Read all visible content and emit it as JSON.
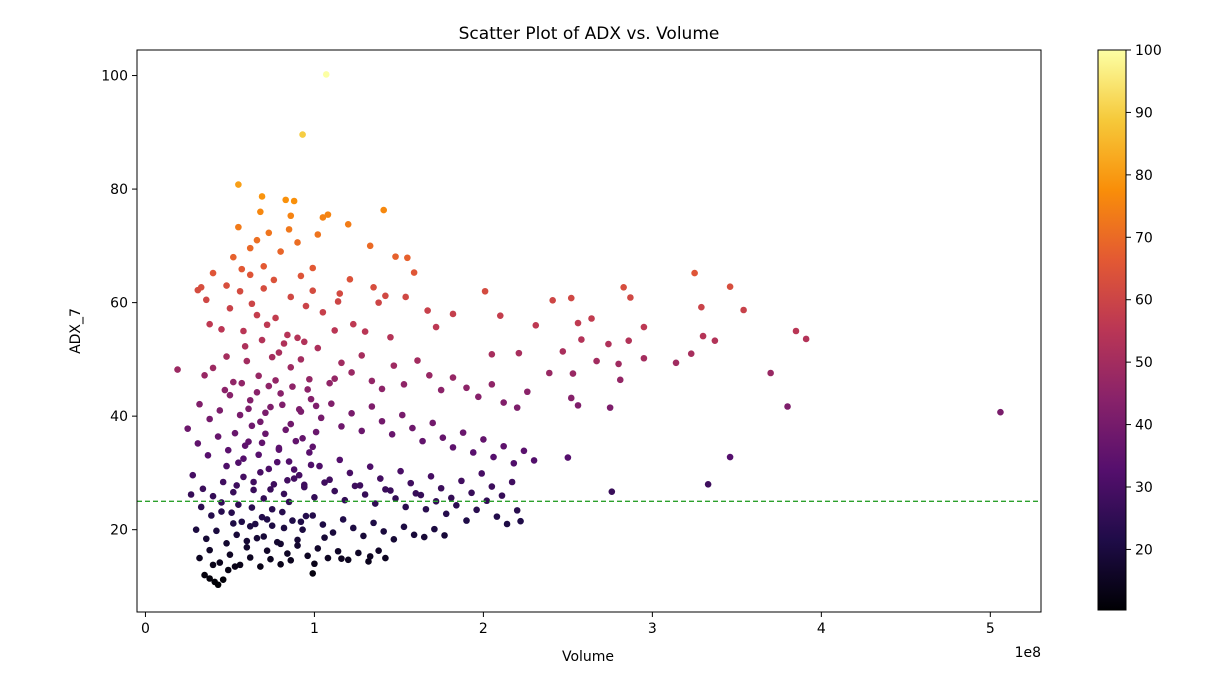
{
  "chart_data": {
    "type": "scatter",
    "title": "Scatter Plot of ADX vs. Volume",
    "xlabel": "Volume",
    "ylabel": "ADX_7",
    "x_offset_label": "1e8",
    "x_unit_multiplier": 100000000,
    "xlim": [
      -0.05,
      5.3
    ],
    "ylim": [
      5.5,
      104.5
    ],
    "x_ticks": [
      0,
      1,
      2,
      3,
      4,
      5
    ],
    "x_tick_labels": [
      "0",
      "1",
      "2",
      "3",
      "4",
      "5"
    ],
    "y_ticks": [
      20,
      40,
      60,
      80,
      100
    ],
    "y_tick_labels": [
      "20",
      "40",
      "60",
      "80",
      "100"
    ],
    "colormap": "inferno",
    "color_value": "ADX_7",
    "colorbar_range": [
      10.3,
      100
    ],
    "colorbar_ticks": [
      20,
      30,
      40,
      50,
      60,
      70,
      80,
      90,
      100
    ],
    "colorbar_tick_labels": [
      "20",
      "30",
      "40",
      "50",
      "60",
      "70",
      "80",
      "90",
      "100"
    ],
    "reference_line": {
      "y": 25,
      "style": "dashed",
      "color": "#2ca02c"
    },
    "grid": false,
    "legend": "none",
    "points": [
      [
        1.07,
        100.2
      ],
      [
        0.93,
        89.6
      ],
      [
        0.55,
        80.8
      ],
      [
        0.69,
        78.7
      ],
      [
        0.83,
        78.1
      ],
      [
        0.88,
        77.9
      ],
      [
        1.05,
        75.0
      ],
      [
        1.08,
        75.5
      ],
      [
        1.41,
        76.3
      ],
      [
        0.86,
        75.3
      ],
      [
        0.68,
        76.0
      ],
      [
        0.55,
        73.3
      ],
      [
        0.85,
        72.9
      ],
      [
        0.66,
        71.0
      ],
      [
        0.73,
        72.3
      ],
      [
        0.9,
        70.6
      ],
      [
        1.02,
        72.0
      ],
      [
        1.2,
        73.8
      ],
      [
        1.33,
        70.0
      ],
      [
        0.62,
        69.6
      ],
      [
        0.8,
        69.0
      ],
      [
        0.52,
        68.0
      ],
      [
        1.48,
        68.1
      ],
      [
        1.55,
        67.9
      ],
      [
        0.57,
        65.9
      ],
      [
        0.7,
        66.4
      ],
      [
        0.62,
        64.9
      ],
      [
        0.76,
        64.0
      ],
      [
        0.92,
        64.7
      ],
      [
        0.99,
        66.1
      ],
      [
        1.21,
        64.1
      ],
      [
        0.4,
        65.2
      ],
      [
        1.59,
        65.3
      ],
      [
        3.25,
        65.2
      ],
      [
        0.31,
        62.2
      ],
      [
        0.33,
        62.7
      ],
      [
        0.48,
        63.0
      ],
      [
        0.56,
        62.0
      ],
      [
        0.7,
        62.5
      ],
      [
        0.86,
        61.0
      ],
      [
        0.99,
        62.1
      ],
      [
        1.15,
        61.6
      ],
      [
        1.14,
        60.2
      ],
      [
        1.38,
        60.0
      ],
      [
        1.35,
        62.7
      ],
      [
        1.42,
        61.2
      ],
      [
        1.54,
        61.0
      ],
      [
        2.01,
        62.0
      ],
      [
        2.41,
        60.4
      ],
      [
        2.52,
        60.8
      ],
      [
        2.83,
        62.7
      ],
      [
        3.46,
        62.8
      ],
      [
        2.87,
        60.9
      ],
      [
        3.29,
        59.2
      ],
      [
        3.54,
        58.7
      ],
      [
        0.36,
        60.5
      ],
      [
        0.5,
        59.0
      ],
      [
        0.63,
        59.8
      ],
      [
        0.77,
        57.3
      ],
      [
        0.95,
        59.4
      ],
      [
        1.05,
        58.3
      ],
      [
        1.23,
        56.2
      ],
      [
        1.67,
        58.6
      ],
      [
        1.82,
        58.0
      ],
      [
        2.1,
        57.7
      ],
      [
        2.31,
        56.0
      ],
      [
        0.38,
        56.2
      ],
      [
        0.45,
        55.3
      ],
      [
        0.58,
        55.0
      ],
      [
        0.66,
        57.8
      ],
      [
        0.72,
        56.1
      ],
      [
        0.84,
        54.3
      ],
      [
        0.9,
        53.8
      ],
      [
        1.12,
        55.1
      ],
      [
        1.3,
        54.9
      ],
      [
        1.45,
        53.9
      ],
      [
        1.72,
        55.7
      ],
      [
        2.56,
        56.4
      ],
      [
        2.64,
        57.2
      ],
      [
        2.95,
        55.7
      ],
      [
        3.3,
        54.1
      ],
      [
        3.85,
        55.0
      ],
      [
        3.37,
        53.3
      ],
      [
        3.91,
        53.6
      ],
      [
        2.58,
        53.5
      ],
      [
        2.86,
        53.3
      ],
      [
        2.74,
        52.7
      ],
      [
        2.95,
        50.2
      ],
      [
        3.23,
        51.0
      ],
      [
        2.05,
        50.9
      ],
      [
        2.21,
        51.1
      ],
      [
        2.47,
        51.4
      ],
      [
        2.67,
        49.7
      ],
      [
        3.14,
        49.4
      ],
      [
        2.8,
        49.2
      ],
      [
        3.7,
        47.6
      ],
      [
        2.53,
        47.5
      ],
      [
        2.39,
        47.6
      ],
      [
        2.81,
        46.4
      ],
      [
        0.19,
        48.2
      ],
      [
        0.35,
        47.2
      ],
      [
        0.4,
        48.5
      ],
      [
        0.48,
        50.5
      ],
      [
        0.52,
        46.0
      ],
      [
        0.6,
        49.7
      ],
      [
        0.67,
        47.1
      ],
      [
        0.73,
        45.3
      ],
      [
        0.79,
        51.2
      ],
      [
        0.86,
        48.6
      ],
      [
        0.92,
        50.0
      ],
      [
        0.97,
        46.5
      ],
      [
        1.02,
        52.0
      ],
      [
        1.09,
        45.8
      ],
      [
        1.16,
        49.4
      ],
      [
        1.22,
        47.7
      ],
      [
        1.28,
        50.7
      ],
      [
        1.34,
        46.2
      ],
      [
        1.4,
        44.8
      ],
      [
        1.47,
        48.9
      ],
      [
        1.53,
        45.6
      ],
      [
        1.61,
        49.8
      ],
      [
        1.68,
        47.2
      ],
      [
        1.75,
        44.6
      ],
      [
        1.82,
        46.8
      ],
      [
        1.9,
        45.0
      ],
      [
        1.97,
        43.4
      ],
      [
        2.05,
        45.6
      ],
      [
        2.12,
        42.4
      ],
      [
        2.2,
        41.5
      ],
      [
        2.26,
        44.3
      ],
      [
        2.52,
        43.2
      ],
      [
        2.56,
        41.9
      ],
      [
        2.75,
        41.5
      ],
      [
        3.8,
        41.7
      ],
      [
        5.06,
        40.7
      ],
      [
        0.32,
        42.1
      ],
      [
        0.38,
        39.5
      ],
      [
        0.44,
        41.0
      ],
      [
        0.5,
        43.7
      ],
      [
        0.56,
        40.2
      ],
      [
        0.62,
        42.8
      ],
      [
        0.68,
        39.0
      ],
      [
        0.74,
        41.6
      ],
      [
        0.8,
        44.0
      ],
      [
        0.86,
        38.6
      ],
      [
        0.92,
        40.8
      ],
      [
        0.98,
        43.0
      ],
      [
        1.04,
        39.7
      ],
      [
        1.1,
        42.2
      ],
      [
        1.16,
        38.2
      ],
      [
        1.22,
        40.5
      ],
      [
        1.28,
        37.4
      ],
      [
        1.34,
        41.7
      ],
      [
        1.4,
        39.1
      ],
      [
        1.46,
        36.8
      ],
      [
        1.52,
        40.2
      ],
      [
        1.58,
        37.9
      ],
      [
        1.64,
        35.6
      ],
      [
        1.7,
        38.8
      ],
      [
        1.76,
        36.2
      ],
      [
        1.82,
        34.5
      ],
      [
        1.88,
        37.1
      ],
      [
        1.94,
        33.6
      ],
      [
        2.0,
        35.9
      ],
      [
        2.06,
        32.8
      ],
      [
        2.12,
        34.7
      ],
      [
        2.18,
        31.7
      ],
      [
        2.24,
        33.9
      ],
      [
        2.3,
        32.2
      ],
      [
        2.5,
        32.7
      ],
      [
        3.46,
        32.8
      ],
      [
        0.25,
        37.8
      ],
      [
        0.31,
        35.2
      ],
      [
        0.37,
        33.1
      ],
      [
        0.43,
        36.4
      ],
      [
        0.49,
        34.0
      ],
      [
        0.55,
        31.8
      ],
      [
        0.61,
        35.5
      ],
      [
        0.67,
        33.2
      ],
      [
        0.73,
        30.7
      ],
      [
        0.79,
        34.4
      ],
      [
        0.85,
        32.0
      ],
      [
        0.91,
        29.6
      ],
      [
        0.97,
        33.6
      ],
      [
        1.03,
        31.2
      ],
      [
        1.09,
        28.8
      ],
      [
        1.15,
        32.3
      ],
      [
        1.21,
        30.0
      ],
      [
        1.27,
        27.8
      ],
      [
        1.33,
        31.1
      ],
      [
        1.39,
        29.0
      ],
      [
        1.45,
        26.9
      ],
      [
        1.51,
        30.3
      ],
      [
        1.57,
        28.2
      ],
      [
        1.63,
        26.1
      ],
      [
        1.69,
        29.4
      ],
      [
        1.75,
        27.3
      ],
      [
        1.81,
        25.6
      ],
      [
        1.87,
        28.6
      ],
      [
        1.93,
        26.5
      ],
      [
        1.99,
        29.9
      ],
      [
        2.05,
        27.6
      ],
      [
        2.11,
        26.0
      ],
      [
        2.17,
        28.4
      ],
      [
        2.76,
        26.7
      ],
      [
        3.33,
        28.0
      ],
      [
        0.28,
        29.6
      ],
      [
        0.34,
        27.2
      ],
      [
        0.4,
        25.9
      ],
      [
        0.46,
        28.4
      ],
      [
        0.52,
        26.6
      ],
      [
        0.58,
        29.3
      ],
      [
        0.64,
        27.0
      ],
      [
        0.7,
        25.5
      ],
      [
        0.76,
        28.0
      ],
      [
        0.82,
        26.3
      ],
      [
        0.88,
        29.0
      ],
      [
        0.94,
        27.5
      ],
      [
        1.0,
        25.7
      ],
      [
        1.06,
        28.3
      ],
      [
        1.12,
        26.8
      ],
      [
        1.18,
        25.2
      ],
      [
        1.24,
        27.7
      ],
      [
        1.3,
        26.2
      ],
      [
        1.36,
        24.6
      ],
      [
        1.42,
        27.1
      ],
      [
        1.48,
        25.5
      ],
      [
        1.54,
        24.0
      ],
      [
        1.6,
        26.4
      ],
      [
        1.66,
        23.6
      ],
      [
        1.72,
        25.0
      ],
      [
        1.78,
        22.8
      ],
      [
        1.84,
        24.3
      ],
      [
        1.9,
        21.6
      ],
      [
        1.96,
        23.5
      ],
      [
        2.02,
        25.1
      ],
      [
        2.08,
        22.3
      ],
      [
        2.14,
        21.0
      ],
      [
        2.2,
        23.4
      ],
      [
        2.22,
        21.5
      ],
      [
        0.27,
        26.2
      ],
      [
        0.33,
        24.0
      ],
      [
        0.39,
        22.5
      ],
      [
        0.45,
        24.8
      ],
      [
        0.51,
        23.0
      ],
      [
        0.57,
        21.4
      ],
      [
        0.63,
        23.9
      ],
      [
        0.69,
        22.2
      ],
      [
        0.75,
        20.7
      ],
      [
        0.81,
        23.1
      ],
      [
        0.87,
        21.6
      ],
      [
        0.93,
        20.0
      ],
      [
        0.99,
        22.5
      ],
      [
        1.05,
        20.9
      ],
      [
        1.11,
        19.5
      ],
      [
        1.17,
        21.8
      ],
      [
        1.23,
        20.3
      ],
      [
        1.29,
        18.9
      ],
      [
        1.35,
        21.2
      ],
      [
        1.41,
        19.7
      ],
      [
        1.47,
        18.3
      ],
      [
        1.53,
        20.5
      ],
      [
        1.59,
        19.1
      ],
      [
        1.65,
        18.7
      ],
      [
        1.71,
        20.1
      ],
      [
        1.77,
        19.0
      ],
      [
        0.3,
        20.0
      ],
      [
        0.36,
        18.4
      ],
      [
        0.42,
        19.8
      ],
      [
        0.48,
        17.6
      ],
      [
        0.54,
        19.1
      ],
      [
        0.6,
        16.9
      ],
      [
        0.66,
        18.5
      ],
      [
        0.72,
        16.3
      ],
      [
        0.78,
        17.8
      ],
      [
        0.84,
        15.8
      ],
      [
        0.9,
        17.2
      ],
      [
        0.96,
        15.4
      ],
      [
        1.02,
        16.7
      ],
      [
        1.08,
        15.0
      ],
      [
        1.14,
        16.2
      ],
      [
        1.2,
        14.7
      ],
      [
        1.26,
        15.9
      ],
      [
        1.32,
        14.4
      ],
      [
        1.38,
        16.3
      ],
      [
        1.42,
        15.0
      ],
      [
        0.32,
        15.0
      ],
      [
        0.38,
        16.4
      ],
      [
        0.44,
        14.2
      ],
      [
        0.5,
        15.6
      ],
      [
        0.56,
        13.8
      ],
      [
        0.62,
        15.1
      ],
      [
        0.68,
        13.5
      ],
      [
        0.74,
        14.8
      ],
      [
        0.8,
        13.9
      ],
      [
        0.86,
        14.6
      ],
      [
        0.99,
        12.3
      ],
      [
        1.0,
        14.0
      ],
      [
        0.38,
        11.4
      ],
      [
        0.41,
        10.8
      ],
      [
        0.43,
        10.3
      ],
      [
        0.46,
        11.2
      ],
      [
        0.49,
        12.9
      ],
      [
        0.53,
        13.5
      ],
      [
        0.35,
        12.0
      ],
      [
        0.4,
        13.8
      ],
      [
        1.33,
        15.3
      ],
      [
        1.16,
        14.9
      ],
      [
        0.45,
        23.2
      ],
      [
        0.55,
        24.4
      ],
      [
        0.65,
        21.0
      ],
      [
        0.75,
        23.6
      ],
      [
        0.85,
        24.9
      ],
      [
        0.95,
        22.4
      ],
      [
        0.48,
        31.2
      ],
      [
        0.58,
        32.5
      ],
      [
        0.68,
        30.1
      ],
      [
        0.78,
        31.9
      ],
      [
        0.88,
        30.6
      ],
      [
        0.98,
        31.4
      ],
      [
        0.53,
        37.0
      ],
      [
        0.63,
        38.3
      ],
      [
        0.71,
        36.9
      ],
      [
        0.83,
        37.6
      ],
      [
        0.93,
        36.1
      ],
      [
        1.01,
        37.2
      ],
      [
        0.47,
        44.6
      ],
      [
        0.57,
        45.8
      ],
      [
        0.66,
        44.2
      ],
      [
        0.77,
        46.3
      ],
      [
        0.87,
        45.2
      ],
      [
        0.96,
        44.7
      ],
      [
        1.12,
        46.6
      ],
      [
        0.59,
        52.3
      ],
      [
        0.69,
        53.4
      ],
      [
        0.82,
        52.8
      ],
      [
        0.94,
        53.1
      ],
      [
        0.75,
        50.4
      ],
      [
        0.61,
        41.3
      ],
      [
        0.71,
        40.6
      ],
      [
        0.81,
        42.0
      ],
      [
        0.91,
        41.2
      ],
      [
        1.01,
        41.8
      ],
      [
        0.54,
        27.8
      ],
      [
        0.64,
        28.4
      ],
      [
        0.74,
        27.1
      ],
      [
        0.84,
        28.7
      ],
      [
        0.94,
        27.9
      ],
      [
        0.59,
        34.8
      ],
      [
        0.69,
        35.3
      ],
      [
        0.79,
        34.1
      ],
      [
        0.89,
        35.6
      ],
      [
        0.99,
        34.6
      ],
      [
        0.52,
        21.1
      ],
      [
        0.62,
        20.6
      ],
      [
        0.72,
        21.8
      ],
      [
        0.82,
        20.3
      ],
      [
        0.92,
        21.4
      ],
      [
        0.6,
        18.0
      ],
      [
        0.7,
        18.8
      ],
      [
        0.8,
        17.5
      ],
      [
        0.9,
        18.2
      ],
      [
        1.06,
        18.6
      ]
    ]
  }
}
